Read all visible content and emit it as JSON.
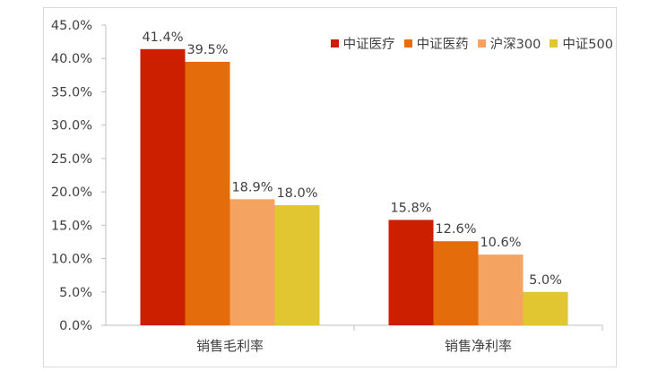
{
  "chart_data": {
    "type": "bar",
    "title": "",
    "xlabel": "",
    "ylabel": "",
    "categories": [
      "销售毛利率",
      "销售净利率"
    ],
    "series": [
      {
        "name": "中证医疗",
        "values": [
          41.4,
          15.8
        ],
        "color": "#cc1f00"
      },
      {
        "name": "中证医药",
        "values": [
          39.5,
          12.6
        ],
        "color": "#e46c0a"
      },
      {
        "name": "沪深300",
        "values": [
          18.9,
          10.6
        ],
        "color": "#f4a460"
      },
      {
        "name": "中证500",
        "values": [
          18.0,
          5.0
        ],
        "color": "#e1c531"
      }
    ],
    "value_labels": [
      [
        "41.4%",
        "15.8%"
      ],
      [
        "39.5%",
        "12.6%"
      ],
      [
        "18.9%",
        "10.6%"
      ],
      [
        "18.0%",
        "5.0%"
      ]
    ],
    "ylim": [
      0,
      45
    ],
    "yticks": [
      "0.0%",
      "5.0%",
      "10.0%",
      "15.0%",
      "20.0%",
      "25.0%",
      "30.0%",
      "35.0%",
      "40.0%",
      "45.0%"
    ],
    "grid": false,
    "legend_position": "top-right"
  }
}
